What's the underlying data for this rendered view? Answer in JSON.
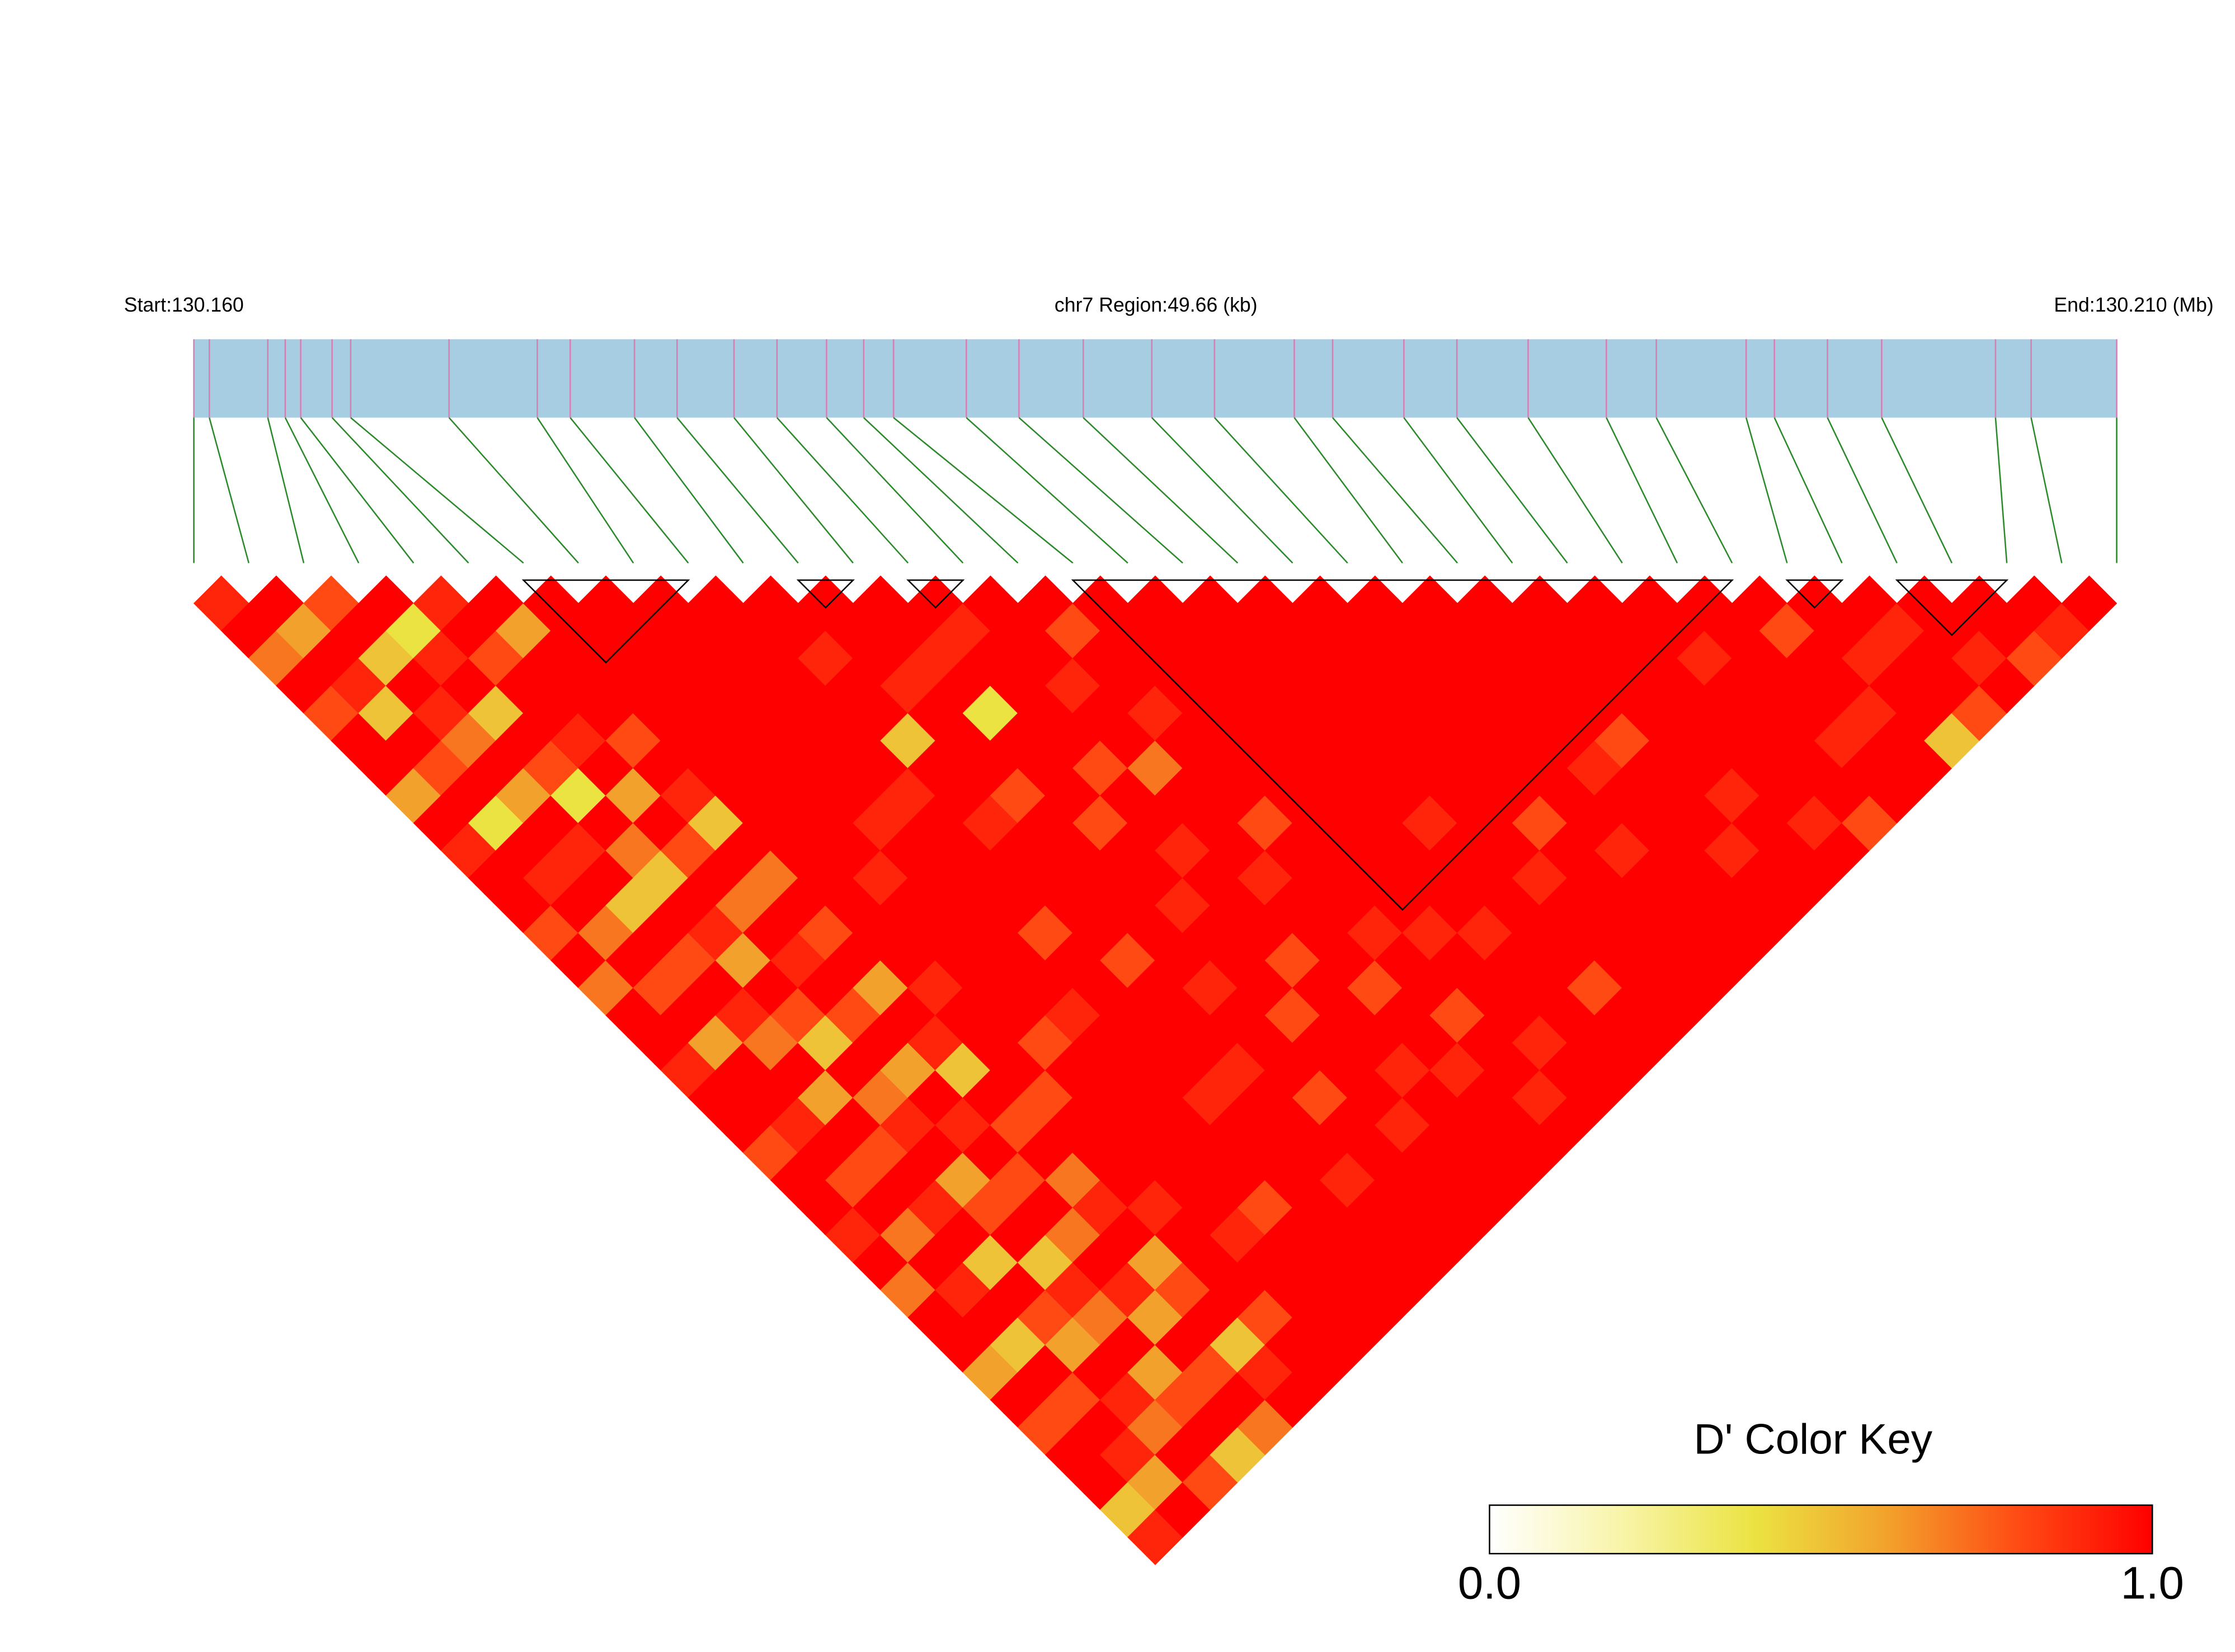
{
  "chart_data": {
    "type": "ldheatmap",
    "start_label": "Start:130.160",
    "region_label": "chr7 Region:49.66 (kb)",
    "end_label": "End:130.210 (Mb)",
    "xlim": [
      0,
      49.66
    ],
    "positions": [
      0,
      0.4,
      1.91,
      2.36,
      2.76,
      3.57,
      4.05,
      6.59,
      8.87,
      9.72,
      11.38,
      12.48,
      13.95,
      15.06,
      16.34,
      17.3,
      18.07,
      19.95,
      21.31,
      22.97,
      24.74,
      26.36,
      28.42,
      29.41,
      31.25,
      32.62,
      34.46,
      36.48,
      37.77,
      40.09,
      40.82,
      42.19,
      43.59,
      46.53,
      47.45,
      49.66
    ],
    "bar_color": "#a7cde2",
    "bar_line_color": "#d77fb5",
    "connector_color": "#2a8a2a",
    "block_color": "#000000",
    "ld": [
      [
        0.9,
        1,
        0.7,
        1,
        0.8,
        1,
        1,
        0.6,
        1,
        0.9,
        1,
        1,
        0.8,
        1,
        0.7,
        1,
        1,
        0.9,
        1,
        1,
        0.8,
        1,
        1,
        0.9,
        1,
        0.7,
        1,
        1,
        0.6,
        1,
        0.8,
        1,
        1,
        0.5,
        0.9
      ],
      [
        1,
        0.6,
        1,
        0.9,
        0.5,
        1,
        0.8,
        1,
        0.4,
        1,
        0.9,
        1,
        0.7,
        1,
        0.8,
        1,
        0.6,
        1,
        1,
        0.9,
        1,
        0.8,
        1,
        0.7,
        1,
        0.9,
        1,
        0.5,
        1,
        0.8,
        1,
        0.9,
        0.6,
        1
      ],
      [
        0.8,
        1,
        0.5,
        1,
        0.9,
        0.7,
        1,
        0.6,
        1,
        0.9,
        1,
        0.5,
        1,
        0.8,
        1,
        0.9,
        0.7,
        1,
        0.6,
        1,
        0.8,
        1,
        0.9,
        1,
        0.5,
        1,
        0.8,
        0.6,
        1,
        0.9,
        0.7,
        1,
        0.8
      ],
      [
        1,
        0.4,
        0.9,
        1,
        0.5,
        1,
        0.8,
        0.4,
        1,
        0.7,
        0.5,
        1,
        0.9,
        0.6,
        1,
        0.8,
        0.5,
        1,
        0.7,
        0.9,
        1,
        0.6,
        0.8,
        1,
        0.5,
        0.9,
        0.7,
        1,
        0.6,
        0.8,
        1,
        0.5
      ],
      [
        0.9,
        1,
        0.8,
        1,
        1,
        0.9,
        1,
        0.6,
        1,
        0.8,
        1,
        0.7,
        1,
        0.9,
        1,
        0.8,
        1,
        0.6,
        1,
        0.9,
        1,
        0.8,
        1,
        0.7,
        1,
        0.9,
        0.6,
        1,
        0.8,
        1,
        0.7
      ],
      [
        1,
        0.6,
        1,
        1,
        1,
        0.8,
        1,
        0.9,
        0.5,
        1,
        0.7,
        1,
        0.8,
        1,
        0.6,
        1,
        0.9,
        0.5,
        1,
        0.8,
        1,
        0.7,
        0.9,
        1,
        0.6,
        0.8,
        1,
        0.5,
        0.9,
        1
      ],
      [
        1,
        1,
        1,
        1,
        1,
        1,
        1,
        1,
        1,
        1,
        1,
        1,
        1,
        1,
        0.9,
        1,
        1,
        1,
        0.8,
        1,
        1,
        1,
        0.9,
        1,
        1,
        1,
        0.8,
        1,
        1
      ],
      [
        1,
        1,
        1,
        1,
        1,
        1,
        1,
        1,
        1,
        1,
        0.9,
        1,
        1,
        1,
        1,
        1,
        0.8,
        1,
        1,
        1,
        1,
        1,
        1,
        0.9,
        1,
        1,
        1,
        1
      ],
      [
        1,
        1,
        1,
        1,
        1,
        1,
        1,
        1,
        0.9,
        1,
        1,
        1,
        1,
        1,
        1,
        0.9,
        1,
        1,
        1,
        1,
        1,
        1,
        0.8,
        1,
        1,
        1,
        1
      ],
      [
        1,
        1,
        1,
        1,
        1,
        1,
        1,
        0.9,
        1,
        1,
        1,
        1,
        0.8,
        1,
        1,
        1,
        1,
        1,
        0.9,
        1,
        1,
        1,
        1,
        1,
        1,
        1
      ],
      [
        1,
        1,
        0.9,
        1,
        1,
        0.5,
        1,
        1,
        0.9,
        1,
        1,
        1,
        1,
        0.8,
        1,
        1,
        1,
        0.9,
        1,
        1,
        1,
        0.9,
        1,
        1,
        1
      ],
      [
        1,
        1,
        1,
        0.9,
        1,
        1,
        1,
        0.8,
        1,
        1,
        1,
        1,
        1,
        1,
        0.9,
        1,
        1,
        1,
        0.8,
        1,
        1,
        1,
        1,
        1
      ],
      [
        1,
        1,
        0.9,
        1,
        0.4,
        1,
        1,
        1,
        0.8,
        1,
        1,
        0.9,
        1,
        1,
        1,
        0.8,
        1,
        1,
        1,
        0.9,
        1,
        1,
        1
      ],
      [
        1,
        0.9,
        1,
        1,
        1,
        1,
        0.8,
        1,
        1,
        0.9,
        1,
        1,
        1,
        0.8,
        1,
        1,
        1,
        0.9,
        1,
        1,
        1,
        1
      ],
      [
        1,
        1,
        1,
        0.9,
        1,
        1,
        0.7,
        1,
        1,
        1,
        0.9,
        1,
        1,
        1,
        0.8,
        1,
        1,
        0.9,
        1,
        1,
        1
      ],
      [
        1,
        0.8,
        1,
        1,
        0.9,
        1,
        1,
        1,
        0.8,
        1,
        1,
        1,
        0.9,
        1,
        1,
        0.8,
        1,
        1,
        0.9,
        1
      ],
      [
        1,
        1,
        1,
        1,
        1,
        1,
        1,
        1,
        1,
        1,
        1,
        1,
        0.9,
        1,
        1,
        1,
        0.9,
        1,
        1
      ],
      [
        1,
        1,
        1,
        1,
        1,
        1,
        1,
        1,
        1,
        1,
        1,
        1,
        0.9,
        1,
        1,
        1,
        1,
        1
      ],
      [
        1,
        1,
        1,
        1,
        1,
        1,
        1,
        1,
        0.9,
        1,
        1,
        1,
        1,
        1,
        0.8,
        1,
        1
      ],
      [
        1,
        1,
        1,
        1,
        1,
        1,
        1,
        1,
        1,
        1,
        0.9,
        1,
        1,
        1,
        1,
        1
      ],
      [
        1,
        1,
        1,
        1,
        1,
        1,
        1,
        1,
        0.8,
        1,
        1,
        1,
        1,
        1,
        1
      ],
      [
        1,
        1,
        1,
        1,
        1,
        1,
        1,
        1,
        1,
        0.9,
        1,
        1,
        1,
        1
      ],
      [
        1,
        1,
        1,
        1,
        1,
        1,
        0.9,
        1,
        1,
        1,
        1,
        1,
        1
      ],
      [
        1,
        1,
        1,
        1,
        1,
        0.8,
        1,
        1,
        1,
        0.9,
        1,
        1
      ],
      [
        1,
        1,
        1,
        1,
        1,
        1,
        1,
        0.9,
        1,
        1,
        1
      ],
      [
        1,
        1,
        1,
        1,
        1,
        1,
        1,
        1,
        0.9,
        1
      ],
      [
        1,
        1,
        0.9,
        1,
        1,
        1,
        1,
        1,
        0.8
      ],
      [
        1,
        1,
        1,
        1,
        1,
        0.9,
        1,
        1
      ],
      [
        1,
        0.8,
        1,
        1,
        0.9,
        1,
        1
      ],
      [
        1,
        1,
        0.9,
        1,
        1,
        0.5
      ],
      [
        1,
        0.9,
        1,
        1,
        0.8
      ],
      [
        1,
        1,
        0.9,
        1
      ],
      [
        1,
        1,
        0.8
      ],
      [
        1,
        0.9
      ],
      [
        1
      ]
    ],
    "blocks": [
      [
        6,
        9
      ],
      [
        11,
        12
      ],
      [
        13,
        14
      ],
      [
        16,
        28
      ],
      [
        29,
        30
      ],
      [
        31,
        33
      ]
    ],
    "colorscale": [
      "#ffffff",
      "#f8f4a8",
      "#ebe342",
      "#f2a22c",
      "#ff4a14",
      "#ff0000"
    ],
    "key_title": "D' Color Key",
    "key_ticks": [
      {
        "value": 0,
        "label": "0.0"
      },
      {
        "value": 1,
        "label": "1.0"
      }
    ]
  }
}
